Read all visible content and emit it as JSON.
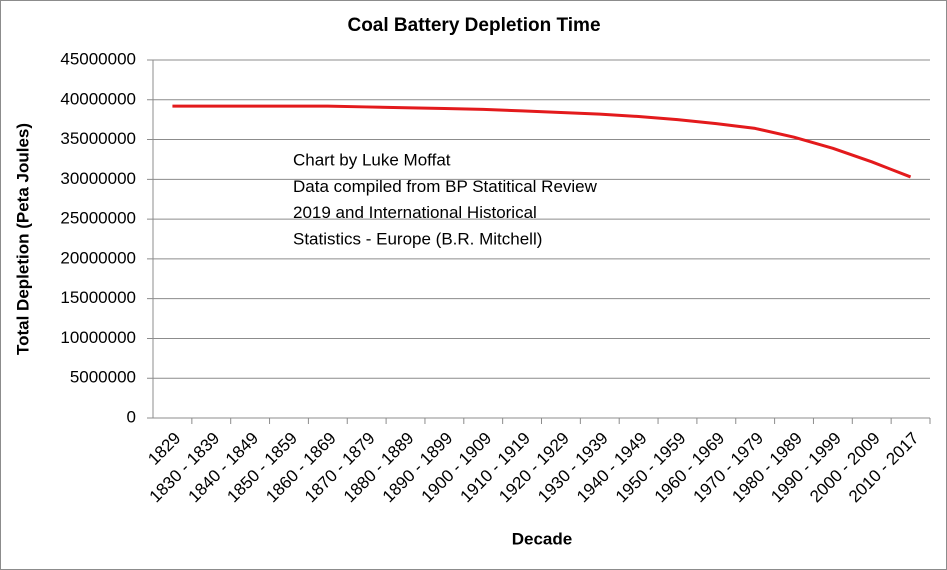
{
  "chart_data": {
    "type": "line",
    "title": "Coal Battery Depletion Time",
    "x_label": "Decade",
    "y_label": "Total Depletion (Peta Joules)",
    "annotation": [
      "Chart by Luke Moffat",
      "Data compiled from BP Statitical Review",
      "2019 and International Historical",
      "Statistics - Europe (B.R. Mitchell)"
    ],
    "categories": [
      "1829",
      "1830 - 1839",
      "1840 - 1849",
      "1850 - 1859",
      "1860 - 1869",
      "1870 - 1879",
      "1880 - 1889",
      "1890 - 1899",
      "1900 - 1909",
      "1910 - 1919",
      "1920 - 1929",
      "1930 - 1939",
      "1940 - 1949",
      "1950 - 1959",
      "1960 - 1969",
      "1970 - 1979",
      "1980 - 1989",
      "1990 - 1999",
      "2000 - 2009",
      "2010 - 2017"
    ],
    "values": [
      39200000,
      39200000,
      39200000,
      39200000,
      39200000,
      39100000,
      39000000,
      38900000,
      38800000,
      38600000,
      38400000,
      38200000,
      37900000,
      37500000,
      37000000,
      36400000,
      35300000,
      33900000,
      32200000,
      30300000
    ],
    "color": "#e31a1c",
    "ylim": [
      0,
      45000000
    ],
    "yticks": [
      0,
      5000000,
      10000000,
      15000000,
      20000000,
      25000000,
      30000000,
      35000000,
      40000000,
      45000000
    ],
    "grid": true
  }
}
